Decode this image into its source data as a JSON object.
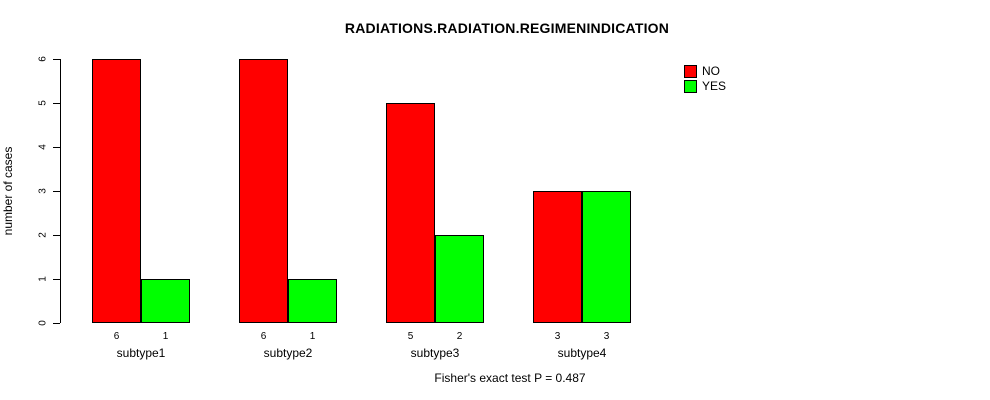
{
  "chart_data": {
    "type": "bar",
    "title": "RADIATIONS.RADIATION.REGIMENINDICATION",
    "ylabel": "number of cases",
    "ylim": [
      0,
      6
    ],
    "yticks": [
      0,
      1,
      2,
      3,
      4,
      5,
      6
    ],
    "categories": [
      "subtype1",
      "subtype2",
      "subtype3",
      "subtype4"
    ],
    "series": [
      {
        "name": "NO",
        "color": "#ff0000",
        "values": [
          6,
          6,
          5,
          3
        ]
      },
      {
        "name": "YES",
        "color": "#00ff00",
        "values": [
          1,
          1,
          2,
          3
        ]
      }
    ],
    "bar_value_labels": [
      [
        "6",
        "1"
      ],
      [
        "6",
        "1"
      ],
      [
        "5",
        "2"
      ],
      [
        "3",
        "3"
      ]
    ],
    "legend_position": "top-right",
    "grid": false,
    "annotation": "Fisher's exact test P = 0.487"
  }
}
